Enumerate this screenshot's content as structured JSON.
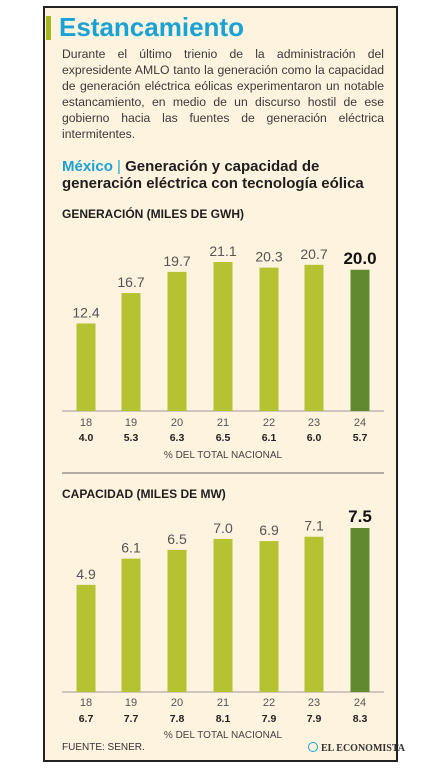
{
  "title": "Estancamiento",
  "intro": "Durante el último trienio de la administración del expresidente AMLO tanto la generación como la capacidad de generación eléctrica eólicas experimentaron un notable estancamiento, en medio de un discurso hostil de ese gobierno hacia las fuentes de generación eléctrica intermitentes.",
  "subtitle": {
    "country": "México",
    "separator": "|",
    "text": "Generación y capacidad de generación eléctrica con tecnología eólica"
  },
  "footer": {
    "source": "FUENTE: SENER.",
    "brand": "EL ECONOMISTA"
  },
  "colors": {
    "accent": "#1aa2d4",
    "bar": "#b5c232",
    "bar_highlight": "#5f8a2f",
    "background": "#fdf3de"
  },
  "chart_data": [
    {
      "type": "bar",
      "title": "GENERACIÓN (MILES DE GWH)",
      "categories": [
        "18",
        "19",
        "20",
        "21",
        "22",
        "23",
        "24"
      ],
      "values": [
        12.4,
        16.7,
        19.7,
        21.1,
        20.3,
        20.7,
        20.0
      ],
      "value_labels": [
        "12.4",
        "16.7",
        "19.7",
        "21.1",
        "20.3",
        "20.7",
        "20.0"
      ],
      "share_values": [
        "4.0",
        "5.3",
        "6.3",
        "6.5",
        "6.1",
        "6.0",
        "5.7"
      ],
      "share_label": "% DEL TOTAL NACIONAL",
      "highlight_index": 6,
      "ylim": [
        0,
        21.1
      ]
    },
    {
      "type": "bar",
      "title": "CAPACIDAD (MILES DE MW)",
      "categories": [
        "18",
        "19",
        "20",
        "21",
        "22",
        "23",
        "24"
      ],
      "values": [
        4.9,
        6.1,
        6.5,
        7.0,
        6.9,
        7.1,
        7.5
      ],
      "value_labels": [
        "4.9",
        "6.1",
        "6.5",
        "7.0",
        "6.9",
        "7.1",
        "7.5"
      ],
      "share_values": [
        "6.7",
        "7.7",
        "7.8",
        "8.1",
        "7.9",
        "7.9",
        "8.3"
      ],
      "share_label": "% DEL TOTAL NACIONAL",
      "highlight_index": 6,
      "ylim": [
        0,
        7.5
      ]
    }
  ]
}
